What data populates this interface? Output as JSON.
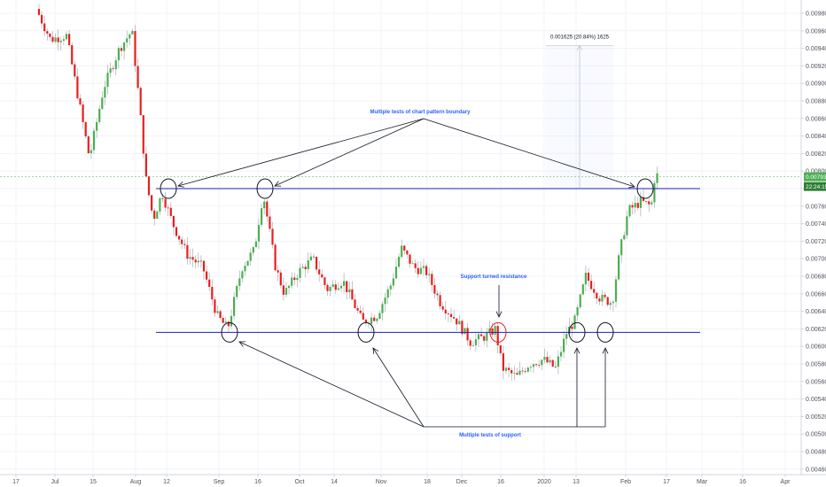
{
  "chart_data": {
    "type": "candlestick",
    "y_axis": {
      "min": 0.0046,
      "max": 0.01,
      "tick_labels": [
        "0.009800",
        "0.009600",
        "0.009400",
        "0.009200",
        "0.009000",
        "0.008800",
        "0.008600",
        "0.008400",
        "0.008200",
        "0.008000",
        "0.007800",
        "0.007600",
        "0.007400",
        "0.007200",
        "0.007000",
        "0.006800",
        "0.006600",
        "0.006400",
        "0.006200",
        "0.006000",
        "0.005800",
        "0.005600",
        "0.005400",
        "0.005200",
        "0.005000",
        "0.004800",
        "0.004600"
      ]
    },
    "x_axis": {
      "tick_labels": [
        "17",
        "Jul",
        "15",
        "Aug",
        "12",
        "Sep",
        "16",
        "Oct",
        "14",
        "Nov",
        "18",
        "Dec",
        "16",
        "2020",
        "13",
        "Feb",
        "17",
        "Mar",
        "16",
        "Apr"
      ]
    },
    "grid": true,
    "current_price": {
      "value": 0.007935,
      "label": "0.007935",
      "countdown": "22:24:15"
    },
    "key_levels": [
      {
        "name": "resistance",
        "value": 0.0078
      },
      {
        "name": "support",
        "value": 0.00616
      }
    ],
    "measure": {
      "label": "0.001625 (20.84%) 1625",
      "from": 0.0078,
      "to": 0.00943
    },
    "annotations": [
      {
        "text": "Multiple tests of chart pattern boundary"
      },
      {
        "text": "Support turned resistance"
      },
      {
        "text": "Multiple tests of support"
      }
    ],
    "colors": {
      "up": "#4caf50",
      "down": "#e91e1e",
      "level": "#1d1fb5",
      "annotation": "#2962ff",
      "price_badge": "#4caf50"
    }
  }
}
